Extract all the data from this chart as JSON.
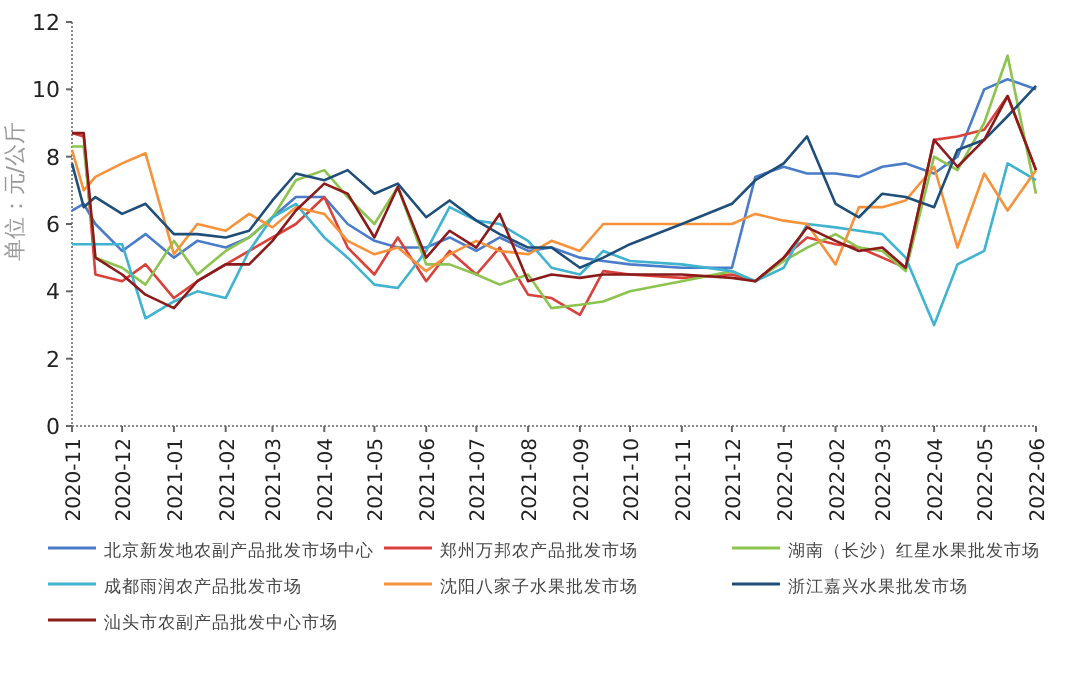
{
  "chart_data": {
    "type": "line",
    "ylabel": "单位：元/公斤",
    "x": [
      "2020-11-01",
      "2020-11-08",
      "2020-11-15",
      "2020-12-01",
      "2020-12-15",
      "2021-01-01",
      "2021-01-15",
      "2021-02-01",
      "2021-02-15",
      "2021-03-01",
      "2021-03-15",
      "2021-04-01",
      "2021-04-15",
      "2021-05-01",
      "2021-05-15",
      "2021-06-01",
      "2021-06-15",
      "2021-07-01",
      "2021-07-15",
      "2021-08-01",
      "2021-08-15",
      "2021-09-01",
      "2021-09-15",
      "2021-10-01",
      "2021-11-01",
      "2021-12-01",
      "2021-12-15",
      "2022-01-01",
      "2022-01-15",
      "2022-02-01",
      "2022-02-15",
      "2022-03-01",
      "2022-03-15",
      "2022-04-01",
      "2022-04-15",
      "2022-05-01",
      "2022-05-15",
      "2022-06-01"
    ],
    "series": [
      {
        "name": "北京新发地农副产品批发市场中心",
        "color": "#4a7cc9",
        "values": [
          6.4,
          6.6,
          6.0,
          5.2,
          5.7,
          5.0,
          5.5,
          5.3,
          5.6,
          6.2,
          6.8,
          6.8,
          6.0,
          5.5,
          5.3,
          5.3,
          5.6,
          5.2,
          5.6,
          5.2,
          5.3,
          5.0,
          4.9,
          4.8,
          4.7,
          4.7,
          7.4,
          7.7,
          7.5,
          7.5,
          7.4,
          7.7,
          7.8,
          7.5,
          8.0,
          10.0,
          10.3,
          10.0
        ]
      },
      {
        "name": "郑州万邦农产品批发市场",
        "color": "#d9413a",
        "values": [
          8.7,
          8.6,
          4.5,
          4.3,
          4.8,
          3.8,
          4.3,
          4.8,
          5.2,
          5.6,
          6.0,
          6.8,
          5.3,
          4.5,
          5.6,
          4.3,
          5.2,
          4.5,
          5.3,
          3.9,
          3.8,
          3.3,
          4.6,
          4.5,
          4.4,
          4.5,
          4.3,
          5.0,
          5.6,
          5.4,
          5.3,
          5.0,
          4.7,
          8.5,
          8.6,
          8.8,
          9.8,
          7.6
        ]
      },
      {
        "name": "湖南（长沙）红星水果批发市场",
        "color": "#8dc34f",
        "values": [
          8.3,
          8.3,
          5.0,
          4.7,
          4.2,
          5.5,
          4.5,
          5.2,
          5.6,
          6.2,
          7.3,
          7.6,
          6.8,
          6.0,
          7.1,
          4.8,
          4.8,
          4.5,
          4.2,
          4.5,
          3.5,
          3.6,
          3.7,
          4.0,
          4.3,
          4.6,
          4.3,
          4.9,
          5.3,
          5.7,
          5.3,
          5.2,
          4.6,
          8.0,
          7.6,
          9.0,
          11.0,
          6.9
        ]
      },
      {
        "name": "成都雨润农产品批发市场",
        "color": "#3fb3d0",
        "values": [
          5.4,
          5.4,
          5.4,
          5.4,
          3.2,
          3.7,
          4.0,
          3.8,
          5.2,
          6.2,
          6.6,
          5.6,
          5.0,
          4.2,
          4.1,
          5.2,
          6.5,
          6.1,
          6.0,
          5.5,
          4.7,
          4.5,
          5.2,
          4.9,
          4.8,
          4.6,
          4.3,
          4.7,
          6.0,
          5.9,
          5.8,
          5.7,
          5.0,
          3.0,
          4.8,
          5.2,
          7.8,
          7.3
        ]
      },
      {
        "name": "沈阳八家子水果批发市场",
        "color": "#f7923a",
        "values": [
          8.2,
          7.0,
          7.4,
          7.8,
          8.1,
          5.1,
          6.0,
          5.8,
          6.3,
          5.9,
          6.5,
          6.3,
          5.5,
          5.1,
          5.3,
          4.6,
          5.1,
          5.5,
          5.2,
          5.1,
          5.5,
          5.2,
          6.0,
          6.0,
          6.0,
          6.0,
          6.3,
          6.1,
          6.0,
          4.8,
          6.5,
          6.5,
          6.7,
          7.7,
          5.3,
          7.5,
          6.4,
          7.6
        ]
      },
      {
        "name": "浙江嘉兴水果批发市场",
        "color": "#1f4e79",
        "values": [
          7.8,
          6.5,
          6.8,
          6.3,
          6.6,
          5.7,
          5.7,
          5.6,
          5.8,
          6.7,
          7.5,
          7.3,
          7.6,
          6.9,
          7.2,
          6.2,
          6.7,
          6.1,
          5.7,
          5.3,
          5.3,
          4.7,
          5.0,
          5.4,
          6.0,
          6.6,
          7.3,
          7.8,
          8.6,
          6.6,
          6.2,
          6.9,
          6.8,
          6.5,
          8.2,
          8.5,
          9.2,
          10.1
        ]
      },
      {
        "name": "汕头市农副产品批发中心市场",
        "color": "#8b1a1a",
        "values": [
          8.7,
          8.7,
          5.0,
          4.5,
          3.9,
          3.5,
          4.3,
          4.8,
          4.8,
          5.5,
          6.4,
          7.2,
          6.9,
          5.6,
          7.1,
          5.0,
          5.8,
          5.3,
          6.3,
          4.3,
          4.5,
          4.4,
          4.5,
          4.5,
          4.5,
          4.4,
          4.3,
          5.0,
          5.9,
          5.5,
          5.2,
          5.3,
          4.7,
          8.5,
          7.7,
          8.5,
          9.8,
          7.6
        ]
      }
    ],
    "xlim": [
      "2020-11",
      "2022-06"
    ],
    "xticks": [
      "2020-11",
      "2020-12",
      "2021-01",
      "2021-02",
      "2021-03",
      "2021-04",
      "2021-05",
      "2021-06",
      "2021-07",
      "2021-08",
      "2021-09",
      "2021-10",
      "2021-11",
      "2021-12",
      "2022-01",
      "2022-02",
      "2022-03",
      "2022-04",
      "2022-05",
      "2022-06"
    ],
    "ylim": [
      0,
      12
    ],
    "yticks": [
      0,
      2,
      4,
      6,
      8,
      10,
      12
    ],
    "legend": "bottom"
  }
}
